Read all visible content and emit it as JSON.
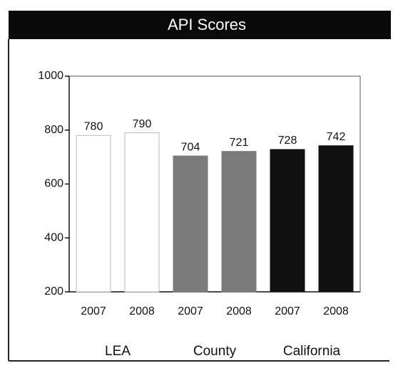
{
  "chart_data": {
    "type": "bar",
    "title": "API Scores",
    "categories": [
      "2007",
      "2008"
    ],
    "series": [
      {
        "name": "LEA",
        "color": "#ffffff",
        "values": [
          780,
          790
        ]
      },
      {
        "name": "County",
        "color": "#7a7a7a",
        "values": [
          704,
          721
        ]
      },
      {
        "name": "California",
        "color": "#111111",
        "values": [
          728,
          742
        ]
      }
    ],
    "ylim": [
      200,
      1000
    ],
    "yticks": [
      200,
      400,
      600,
      800,
      1000
    ]
  }
}
